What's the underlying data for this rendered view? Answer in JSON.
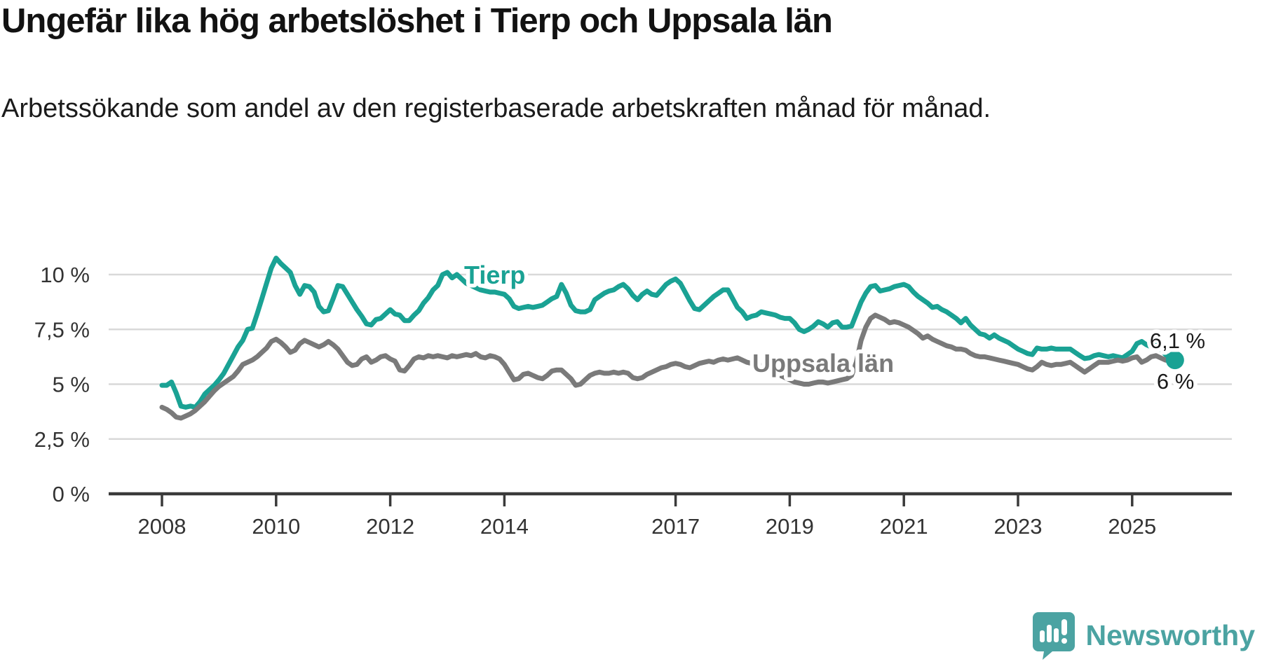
{
  "header": {
    "title": "Ungefär lika hög arbetslöshet i Tierp och Uppsala län",
    "subtitle": "Arbetssökande som andel av den registerbaserade arbetskraften månad för månad."
  },
  "chart_data": {
    "type": "line",
    "unit": "%",
    "frequency": "monthly",
    "x_start": "2008-01",
    "x_end": "2025-10",
    "grid": true,
    "legend": "inline-labels",
    "colors": {
      "tierp": "#1aa294",
      "uppsala": "#7a7a7a",
      "grid": "#d9d9d9",
      "axis": "#3a3a3a",
      "tick_text": "#333333",
      "annotation_text": "#1a1a1a"
    },
    "y_axis": {
      "range": [
        0,
        11.2
      ],
      "tick_values": [
        0,
        2.5,
        5,
        7.5,
        10
      ],
      "tick_labels": [
        "0 %",
        "2,5 %",
        "5 %",
        "7,5 %",
        "10 %"
      ]
    },
    "x_axis": {
      "tick_years": [
        2008,
        2010,
        2012,
        2014,
        2017,
        2019,
        2021,
        2023,
        2025
      ],
      "tick_labels": [
        "2008",
        "2010",
        "2012",
        "2014",
        "2017",
        "2019",
        "2021",
        "2023",
        "2025"
      ]
    },
    "series": [
      {
        "name": "Tierp",
        "color": "#1aa294",
        "end_label": "6,1 %",
        "end_value": 6.1,
        "values": [
          4.95,
          4.95,
          5.1,
          4.6,
          4.0,
          3.95,
          4.0,
          3.95,
          4.2,
          4.55,
          4.75,
          4.95,
          5.2,
          5.5,
          5.9,
          6.3,
          6.7,
          7.0,
          7.5,
          7.55,
          8.2,
          8.9,
          9.6,
          10.3,
          10.75,
          10.5,
          10.3,
          10.1,
          9.5,
          9.1,
          9.5,
          9.45,
          9.2,
          8.55,
          8.3,
          8.35,
          8.9,
          9.5,
          9.45,
          9.1,
          8.75,
          8.4,
          8.1,
          7.75,
          7.7,
          7.95,
          8.0,
          8.2,
          8.4,
          8.2,
          8.15,
          7.9,
          7.9,
          8.15,
          8.35,
          8.7,
          8.95,
          9.3,
          9.5,
          10.0,
          10.1,
          9.85,
          10.0,
          9.8,
          9.6,
          9.5,
          9.4,
          9.3,
          9.25,
          9.2,
          9.2,
          9.15,
          9.1,
          8.9,
          8.55,
          8.45,
          8.5,
          8.55,
          8.5,
          8.55,
          8.6,
          8.75,
          8.9,
          9.0,
          9.55,
          9.15,
          8.6,
          8.35,
          8.3,
          8.3,
          8.4,
          8.85,
          9.0,
          9.15,
          9.25,
          9.3,
          9.45,
          9.55,
          9.35,
          9.05,
          8.85,
          9.1,
          9.25,
          9.1,
          9.05,
          9.3,
          9.55,
          9.7,
          9.8,
          9.6,
          9.2,
          8.8,
          8.45,
          8.4,
          8.6,
          8.8,
          9.0,
          9.15,
          9.3,
          9.3,
          8.9,
          8.5,
          8.3,
          8.0,
          8.1,
          8.15,
          8.3,
          8.25,
          8.2,
          8.15,
          8.05,
          8.0,
          8.0,
          7.8,
          7.5,
          7.4,
          7.5,
          7.65,
          7.85,
          7.75,
          7.6,
          7.8,
          7.85,
          7.6,
          7.6,
          7.65,
          8.2,
          8.75,
          9.15,
          9.45,
          9.5,
          9.25,
          9.3,
          9.35,
          9.45,
          9.5,
          9.55,
          9.45,
          9.2,
          9.0,
          8.85,
          8.7,
          8.5,
          8.55,
          8.4,
          8.3,
          8.15,
          8.0,
          7.8,
          8.0,
          7.7,
          7.5,
          7.3,
          7.25,
          7.1,
          7.25,
          7.1,
          7.0,
          6.9,
          6.75,
          6.6,
          6.5,
          6.4,
          6.35,
          6.65,
          6.6,
          6.6,
          6.65,
          6.6,
          6.6,
          6.6,
          6.6,
          6.45,
          6.3,
          6.17,
          6.2,
          6.3,
          6.35,
          6.3,
          6.25,
          6.3,
          6.25,
          6.2,
          6.35,
          6.5,
          6.85,
          6.95,
          6.8,
          6.7,
          6.85,
          6.6,
          6.35,
          6.2,
          6.1
        ]
      },
      {
        "name": "Uppsala län",
        "color": "#7a7a7a",
        "end_label": "6 %",
        "end_value": 6.0,
        "values": [
          3.95,
          3.85,
          3.7,
          3.5,
          3.45,
          3.55,
          3.65,
          3.8,
          4.0,
          4.2,
          4.45,
          4.7,
          4.9,
          5.05,
          5.2,
          5.35,
          5.6,
          5.9,
          6.0,
          6.1,
          6.25,
          6.45,
          6.65,
          6.95,
          7.05,
          6.9,
          6.7,
          6.45,
          6.55,
          6.85,
          7.0,
          6.9,
          6.8,
          6.7,
          6.8,
          6.95,
          6.8,
          6.6,
          6.3,
          6.0,
          5.85,
          5.9,
          6.15,
          6.25,
          6.0,
          6.1,
          6.25,
          6.3,
          6.15,
          6.05,
          5.65,
          5.6,
          5.85,
          6.15,
          6.25,
          6.2,
          6.3,
          6.25,
          6.3,
          6.25,
          6.2,
          6.3,
          6.25,
          6.3,
          6.35,
          6.3,
          6.4,
          6.25,
          6.2,
          6.3,
          6.25,
          6.15,
          5.9,
          5.55,
          5.2,
          5.25,
          5.45,
          5.5,
          5.4,
          5.3,
          5.25,
          5.4,
          5.6,
          5.65,
          5.65,
          5.45,
          5.25,
          4.95,
          5.0,
          5.2,
          5.4,
          5.5,
          5.55,
          5.5,
          5.5,
          5.55,
          5.5,
          5.55,
          5.5,
          5.3,
          5.25,
          5.3,
          5.45,
          5.55,
          5.65,
          5.75,
          5.8,
          5.9,
          5.95,
          5.9,
          5.8,
          5.75,
          5.85,
          5.95,
          6.0,
          6.05,
          6.0,
          6.1,
          6.15,
          6.1,
          6.15,
          6.2,
          6.1,
          6.0,
          5.95,
          5.9,
          5.85,
          5.75,
          5.6,
          5.5,
          5.4,
          5.3,
          5.2,
          5.1,
          5.05,
          5.0,
          5.0,
          5.05,
          5.1,
          5.1,
          5.05,
          5.1,
          5.15,
          5.2,
          5.25,
          5.4,
          6.0,
          7.0,
          7.6,
          8.0,
          8.15,
          8.05,
          7.95,
          7.8,
          7.85,
          7.8,
          7.7,
          7.6,
          7.45,
          7.3,
          7.1,
          7.2,
          7.05,
          6.95,
          6.85,
          6.75,
          6.7,
          6.6,
          6.6,
          6.55,
          6.4,
          6.3,
          6.25,
          6.25,
          6.2,
          6.15,
          6.1,
          6.05,
          6.0,
          5.95,
          5.9,
          5.8,
          5.7,
          5.65,
          5.8,
          6.0,
          5.9,
          5.85,
          5.9,
          5.9,
          5.95,
          6.0,
          5.85,
          5.7,
          5.55,
          5.7,
          5.85,
          6.0,
          6.0,
          6.0,
          6.05,
          6.1,
          6.05,
          6.1,
          6.2,
          6.25,
          6.0,
          6.1,
          6.25,
          6.3,
          6.2,
          6.1,
          6.05,
          6.0
        ]
      }
    ]
  },
  "footer": {
    "brand": "Newsworthy"
  }
}
